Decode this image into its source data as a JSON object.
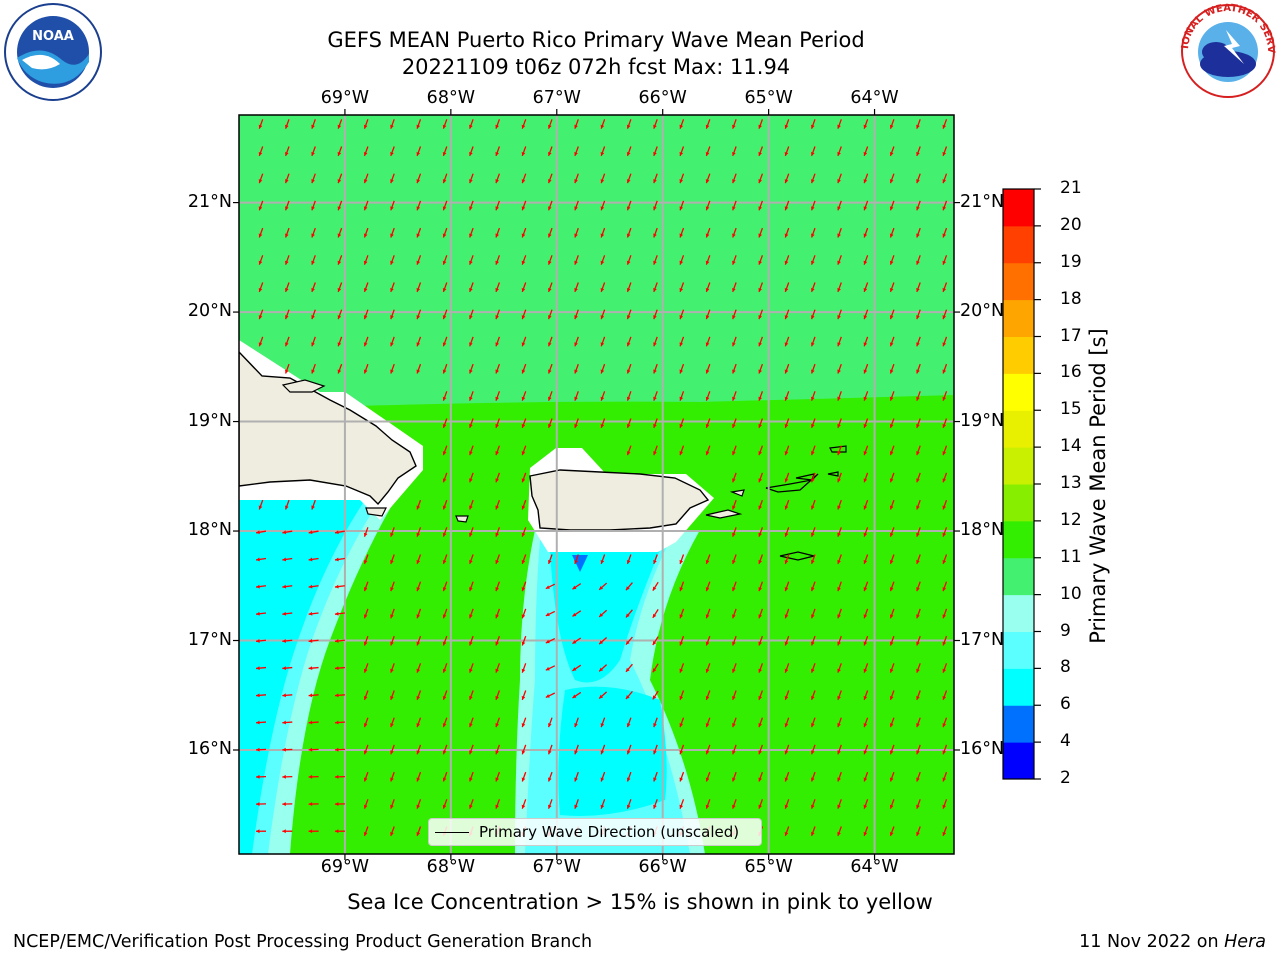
{
  "title": {
    "line1": "GEFS MEAN Puerto Rico Primary Wave Mean Period",
    "line2": "20221109 t06z 072h fcst   Max: 11.94"
  },
  "map": {
    "lon_labels": [
      "69°W",
      "68°W",
      "67°W",
      "66°W",
      "65°W",
      "64°W"
    ],
    "lat_labels": [
      "21°N",
      "20°N",
      "19°N",
      "18°N",
      "17°N",
      "16°N"
    ],
    "lon_range": [
      -70,
      -63.25
    ],
    "lat_range": [
      15.05,
      21.8
    ],
    "legend_label": "Primary Wave Direction (unscaled)",
    "arrow_color": "#ff0000",
    "land_color": "#efeddf"
  },
  "colorbar": {
    "title": "Primary Wave Mean Period [s]",
    "ticks": [
      "2",
      "4",
      "6",
      "8",
      "9",
      "10",
      "11",
      "12",
      "13",
      "14",
      "15",
      "16",
      "17",
      "18",
      "19",
      "20",
      "21"
    ],
    "colors": [
      "#0000ff",
      "#0070ff",
      "#00ffff",
      "#5cffff",
      "#99ffee",
      "#44f070",
      "#33ee00",
      "#88ee00",
      "#c8f000",
      "#e8f000",
      "#ffff00",
      "#ffcc00",
      "#ffa500",
      "#ff7000",
      "#ff4000",
      "#ff0000"
    ]
  },
  "caption": "Sea Ice Concentration > 15% is shown in pink to yellow",
  "footer": {
    "left": "NCEP/EMC/Verification Post Processing Product Generation Branch",
    "right_date": "11 Nov 2022 on ",
    "right_host": "Hera"
  },
  "logos": {
    "noaa_text": "NOAA",
    "nws_text": "NATIONAL WEATHER SERVICE"
  }
}
